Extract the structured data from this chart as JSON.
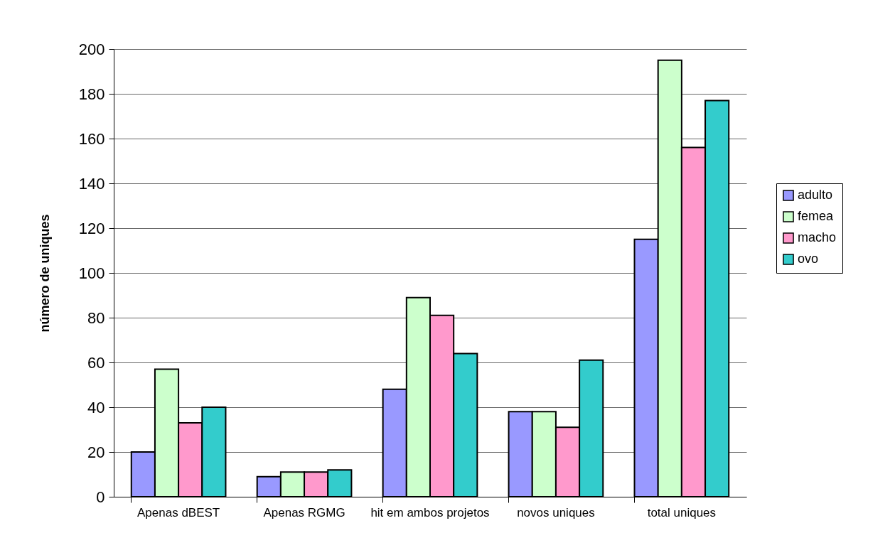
{
  "chart_data": {
    "type": "bar",
    "ylabel": "número de uniques",
    "categories": [
      "Apenas dBEST",
      "Apenas RGMG",
      "hit em ambos projetos",
      "novos uniques",
      "total uniques"
    ],
    "series": [
      {
        "name": "adulto",
        "color": "#9999ff",
        "values": [
          20,
          9,
          48,
          38,
          115
        ]
      },
      {
        "name": "femea",
        "color": "#ccffcc",
        "values": [
          57,
          11,
          89,
          38,
          195
        ]
      },
      {
        "name": "macho",
        "color": "#ff99cc",
        "values": [
          33,
          11,
          81,
          31,
          156
        ]
      },
      {
        "name": "ovo",
        "color": "#33cccc",
        "values": [
          40,
          12,
          64,
          61,
          177
        ]
      }
    ],
    "ylim": [
      0,
      200
    ],
    "yticks": [
      0,
      20,
      40,
      60,
      80,
      100,
      120,
      140,
      160,
      180,
      200
    ],
    "grid": "y",
    "legend": "right"
  }
}
